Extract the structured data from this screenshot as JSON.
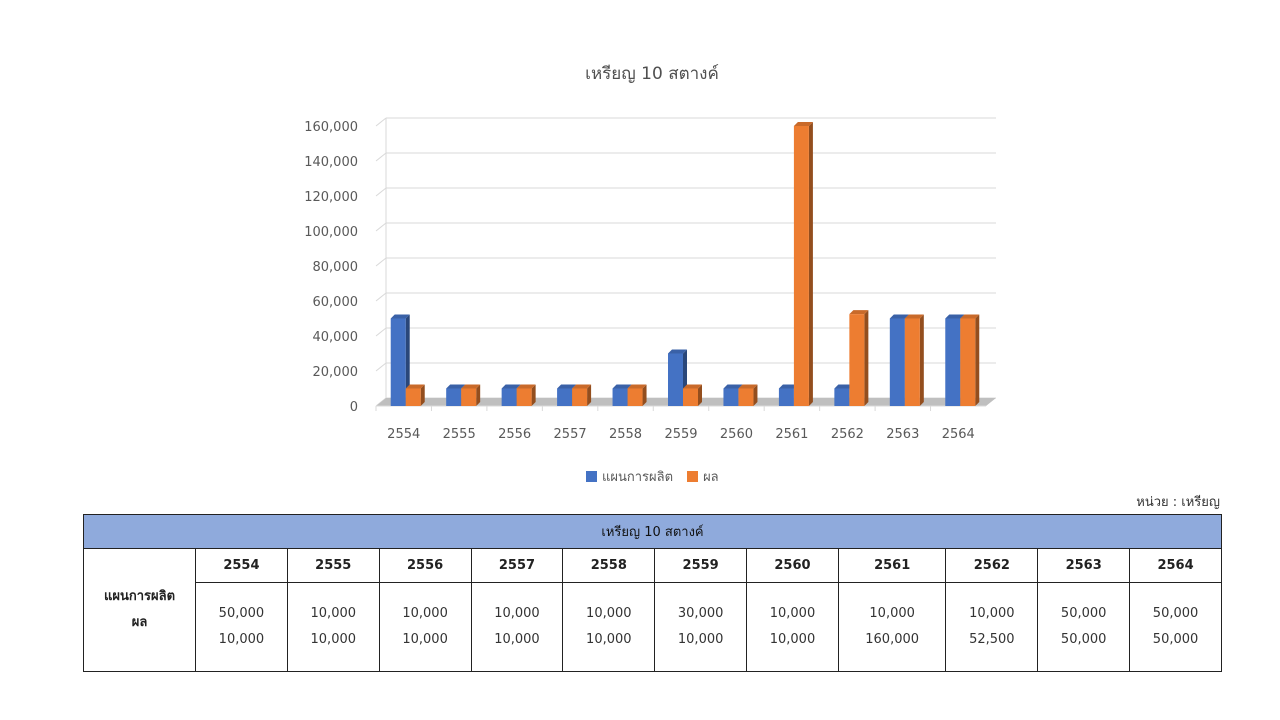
{
  "chart_data": {
    "type": "bar",
    "title": "เหรียญ 10 สตางค์",
    "categories": [
      "2554",
      "2555",
      "2556",
      "2557",
      "2558",
      "2559",
      "2560",
      "2561",
      "2562",
      "2563",
      "2564"
    ],
    "series": [
      {
        "name": "แผนการผลิต",
        "color": "#4472c4",
        "values": [
          50000,
          10000,
          10000,
          10000,
          10000,
          30000,
          10000,
          10000,
          10000,
          50000,
          50000
        ]
      },
      {
        "name": "ผล",
        "color": "#ed7d31",
        "values": [
          10000,
          10000,
          10000,
          10000,
          10000,
          10000,
          10000,
          160000,
          52500,
          50000,
          50000
        ]
      }
    ],
    "yticks": [
      "0",
      "20,000",
      "40,000",
      "60,000",
      "80,000",
      "100,000",
      "120,000",
      "140,000",
      "160,000"
    ],
    "ylim": [
      0,
      160000
    ],
    "grid": true,
    "legend_position": "bottom"
  },
  "unit_label": "หน่วย : เหรียญ",
  "table": {
    "title": "เหรียญ 10 สตางค์",
    "years": [
      "2554",
      "2555",
      "2556",
      "2557",
      "2558",
      "2559",
      "2560",
      "2561",
      "2562",
      "2563",
      "2564"
    ],
    "row_labels": [
      "แผนการผลิต",
      "ผล"
    ],
    "plan": [
      "50,000",
      "10,000",
      "10,000",
      "10,000",
      "10,000",
      "30,000",
      "10,000",
      "10,000",
      "10,000",
      "50,000",
      "50,000"
    ],
    "result": [
      "10,000",
      "10,000",
      "10,000",
      "10,000",
      "10,000",
      "10,000",
      "10,000",
      "160,000",
      "52,500",
      "50,000",
      "50,000"
    ]
  }
}
